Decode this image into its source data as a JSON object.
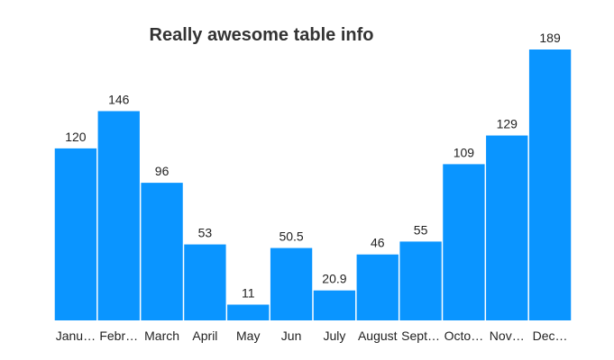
{
  "chart_data": {
    "type": "bar",
    "title": "Really awesome table info",
    "categories": [
      "January",
      "February",
      "March",
      "April",
      "May",
      "Jun",
      "July",
      "August",
      "September",
      "October",
      "November",
      "December"
    ],
    "tick_labels": [
      "Janu…",
      "Febr…",
      "March",
      "April",
      "May",
      "Jun",
      "July",
      "August",
      "Sept…",
      "Octo…",
      "Nov…",
      "Dec…"
    ],
    "values": [
      120,
      146,
      96,
      53,
      11,
      50.5,
      20.9,
      46,
      55,
      109,
      129,
      189
    ],
    "value_labels": [
      "120",
      "146",
      "96",
      "53",
      "11",
      "50.5",
      "20.9",
      "46",
      "55",
      "109",
      "129",
      "189"
    ],
    "ylim": [
      0,
      189
    ],
    "grid": false,
    "legend": "none",
    "bar_color": "#0a95ff"
  }
}
